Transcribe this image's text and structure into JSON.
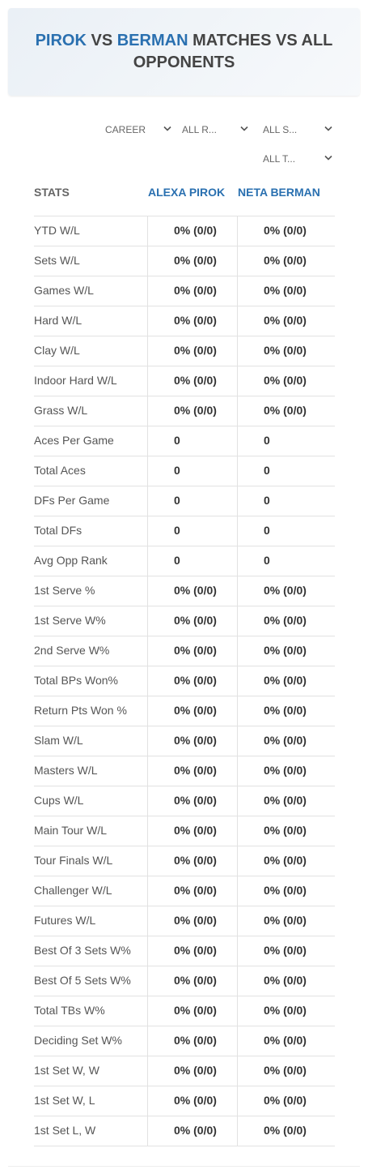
{
  "header": {
    "title": [
      {
        "text": "PIROK",
        "highlight": true
      },
      {
        "text": " VS ",
        "highlight": false
      },
      {
        "text": "BERMAN",
        "highlight": true
      },
      {
        "text": " MATCHES VS ALL OPPONENTS",
        "highlight": false
      }
    ]
  },
  "filters": [
    "CAREER",
    "ALL R...",
    "ALL S...",
    "ALL T..."
  ],
  "table": {
    "columns": [
      "STATS",
      "ALEXA PIROK",
      "NETA BERMAN"
    ],
    "rows": [
      [
        "YTD W/L",
        "0% (0/0)",
        "0% (0/0)"
      ],
      [
        "Sets W/L",
        "0% (0/0)",
        "0% (0/0)"
      ],
      [
        "Games W/L",
        "0% (0/0)",
        "0% (0/0)"
      ],
      [
        "Hard W/L",
        "0% (0/0)",
        "0% (0/0)"
      ],
      [
        "Clay W/L",
        "0% (0/0)",
        "0% (0/0)"
      ],
      [
        "Indoor Hard W/L",
        "0% (0/0)",
        "0% (0/0)"
      ],
      [
        "Grass W/L",
        "0% (0/0)",
        "0% (0/0)"
      ],
      [
        "Aces Per Game",
        "0",
        "0"
      ],
      [
        "Total Aces",
        "0",
        "0"
      ],
      [
        "DFs Per Game",
        "0",
        "0"
      ],
      [
        "Total DFs",
        "0",
        "0"
      ],
      [
        "Avg Opp Rank",
        "0",
        "0"
      ],
      [
        "1st Serve %",
        "0% (0/0)",
        "0% (0/0)"
      ],
      [
        "1st Serve W%",
        "0% (0/0)",
        "0% (0/0)"
      ],
      [
        "2nd Serve W%",
        "0% (0/0)",
        "0% (0/0)"
      ],
      [
        "Total BPs Won%",
        "0% (0/0)",
        "0% (0/0)"
      ],
      [
        "Return Pts Won %",
        "0% (0/0)",
        "0% (0/0)"
      ],
      [
        "Slam W/L",
        "0% (0/0)",
        "0% (0/0)"
      ],
      [
        "Masters W/L",
        "0% (0/0)",
        "0% (0/0)"
      ],
      [
        "Cups W/L",
        "0% (0/0)",
        "0% (0/0)"
      ],
      [
        "Main Tour W/L",
        "0% (0/0)",
        "0% (0/0)"
      ],
      [
        "Tour Finals W/L",
        "0% (0/0)",
        "0% (0/0)"
      ],
      [
        "Challenger W/L",
        "0% (0/0)",
        "0% (0/0)"
      ],
      [
        "Futures W/L",
        "0% (0/0)",
        "0% (0/0)"
      ],
      [
        "Best Of 3 Sets W%",
        "0% (0/0)",
        "0% (0/0)"
      ],
      [
        "Best Of 5 Sets W%",
        "0% (0/0)",
        "0% (0/0)"
      ],
      [
        "Total TBs W%",
        "0% (0/0)",
        "0% (0/0)"
      ],
      [
        "Deciding Set W%",
        "0% (0/0)",
        "0% (0/0)"
      ],
      [
        "1st Set W, W",
        "0% (0/0)",
        "0% (0/0)"
      ],
      [
        "1st Set W, L",
        "0% (0/0)",
        "0% (0/0)"
      ],
      [
        "1st Set L, W",
        "0% (0/0)",
        "0% (0/0)"
      ]
    ]
  }
}
